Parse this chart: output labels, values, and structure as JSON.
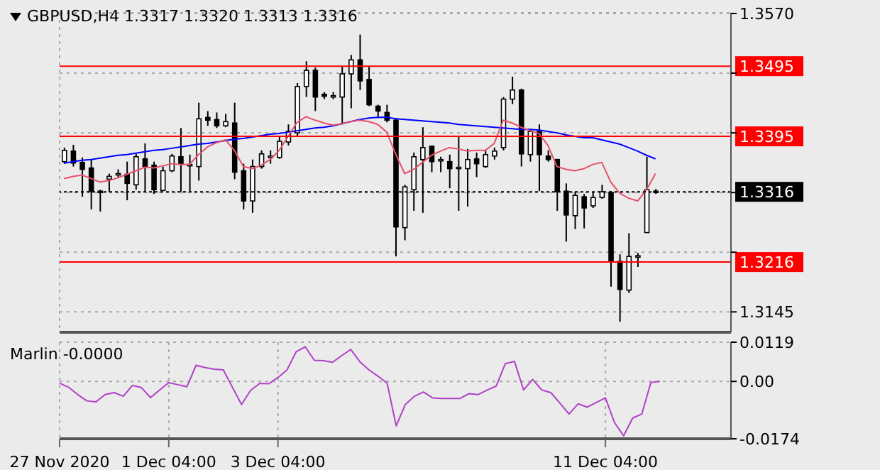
{
  "chart_data": [
    {
      "type": "candlestick",
      "title": "GBPUSD,H4 1.3317 1.3320 1.3313 1.3316",
      "categories": [
        null,
        null,
        null,
        null,
        null,
        null,
        null,
        null,
        null,
        null,
        null,
        null,
        null,
        null,
        null,
        null,
        null,
        null,
        null,
        null,
        null,
        null,
        null,
        null,
        null,
        null,
        null,
        null,
        null,
        null,
        null,
        null,
        null,
        null,
        null,
        null,
        null,
        null,
        null,
        null,
        null,
        null,
        null,
        null,
        null,
        null,
        null,
        null,
        null,
        null,
        null,
        null,
        null,
        null,
        null,
        null,
        null,
        null,
        null,
        null,
        null,
        null,
        null,
        null,
        null,
        null,
        null
      ],
      "ohlc": [
        [
          1.3359,
          1.3379,
          1.3356,
          1.3375
        ],
        [
          1.3374,
          1.3383,
          1.3352,
          1.3357
        ],
        [
          1.3358,
          1.3365,
          1.3309,
          1.3348
        ],
        [
          1.335,
          1.3362,
          1.3291,
          1.3317
        ],
        [
          1.3315,
          1.3319,
          1.3288,
          1.3317
        ],
        [
          1.3334,
          1.3342,
          1.3316,
          1.3338
        ],
        [
          1.3341,
          1.3348,
          1.3336,
          1.3342
        ],
        [
          1.3341,
          1.3359,
          1.3304,
          1.3328
        ],
        [
          1.3326,
          1.337,
          1.3319,
          1.3366
        ],
        [
          1.3363,
          1.3385,
          1.3316,
          1.3352
        ],
        [
          1.3354,
          1.3359,
          1.3313,
          1.3319
        ],
        [
          1.3318,
          1.3352,
          1.3317,
          1.3346
        ],
        [
          1.3346,
          1.337,
          1.3344,
          1.3367
        ],
        [
          1.3366,
          1.3407,
          1.3316,
          1.3356
        ],
        [
          1.3354,
          1.3369,
          1.3317,
          1.3355
        ],
        [
          1.3352,
          1.3443,
          1.3332,
          1.342
        ],
        [
          1.3422,
          1.3431,
          1.341,
          1.3418
        ],
        [
          1.3419,
          1.3429,
          1.3407,
          1.341
        ],
        [
          1.341,
          1.3427,
          1.3408,
          1.3416
        ],
        [
          1.3414,
          1.3443,
          1.3334,
          1.3344
        ],
        [
          1.3346,
          1.3356,
          1.3291,
          1.3303
        ],
        [
          1.3303,
          1.3362,
          1.3286,
          1.3352
        ],
        [
          1.3352,
          1.3375,
          1.3349,
          1.337
        ],
        [
          1.3366,
          1.3375,
          1.3356,
          1.3367
        ],
        [
          1.3365,
          1.3395,
          1.3363,
          1.3388
        ],
        [
          1.3387,
          1.3412,
          1.3382,
          1.3402
        ],
        [
          1.34,
          1.3471,
          1.3396,
          1.3466
        ],
        [
          1.3466,
          1.3502,
          1.3451,
          1.3489
        ],
        [
          1.3489,
          1.3493,
          1.3431,
          1.3451
        ],
        [
          1.3455,
          1.3458,
          1.3448,
          1.3452
        ],
        [
          1.3451,
          1.3458,
          1.3448,
          1.3453
        ],
        [
          1.3451,
          1.3495,
          1.3412,
          1.3484
        ],
        [
          1.3484,
          1.3511,
          1.3435,
          1.3504
        ],
        [
          1.3504,
          1.354,
          1.3461,
          1.3474
        ],
        [
          1.3476,
          1.3494,
          1.3438,
          1.344
        ],
        [
          1.3438,
          1.344,
          1.3421,
          1.3431
        ],
        [
          1.3429,
          1.344,
          1.3415,
          1.3418
        ],
        [
          1.3418,
          1.3421,
          1.3224,
          1.3266
        ],
        [
          1.3265,
          1.3326,
          1.3247,
          1.3323
        ],
        [
          1.3319,
          1.3372,
          1.3289,
          1.3366
        ],
        [
          1.3362,
          1.3408,
          1.3286,
          1.3379
        ],
        [
          1.3381,
          1.3382,
          1.3344,
          1.3359
        ],
        [
          1.3361,
          1.3366,
          1.3344,
          1.3362
        ],
        [
          1.3359,
          1.3369,
          1.3321,
          1.3349
        ],
        [
          1.335,
          1.3394,
          1.3289,
          1.3351
        ],
        [
          1.3349,
          1.3377,
          1.3295,
          1.3362
        ],
        [
          1.3363,
          1.3372,
          1.3337,
          1.3356
        ],
        [
          1.3352,
          1.3375,
          1.335,
          1.3369
        ],
        [
          1.3367,
          1.3379,
          1.3362,
          1.3374
        ],
        [
          1.3379,
          1.3451,
          1.3375,
          1.3448
        ],
        [
          1.3448,
          1.348,
          1.3441,
          1.3461
        ],
        [
          1.3461,
          1.3463,
          1.3352,
          1.337
        ],
        [
          1.3369,
          1.3405,
          1.3359,
          1.3402
        ],
        [
          1.3402,
          1.3412,
          1.3317,
          1.3369
        ],
        [
          1.3367,
          1.3375,
          1.3359,
          1.3362
        ],
        [
          1.3362,
          1.3363,
          1.3289,
          1.3316
        ],
        [
          1.3317,
          1.3328,
          1.3245,
          1.3283
        ],
        [
          1.3282,
          1.3316,
          1.3263,
          1.3311
        ],
        [
          1.3309,
          1.3313,
          1.3264,
          1.3293
        ],
        [
          1.3296,
          1.3316,
          1.3293,
          1.3308
        ],
        [
          1.3308,
          1.3326,
          1.3306,
          1.3316
        ],
        [
          1.3315,
          1.3317,
          1.3181,
          1.3218
        ],
        [
          1.3217,
          1.3227,
          1.3131,
          1.3177
        ],
        [
          1.3176,
          1.3257,
          1.3172,
          1.3224
        ],
        [
          1.3224,
          1.3229,
          1.3209,
          1.3225
        ],
        [
          1.3258,
          1.3366,
          1.3258,
          1.3319
        ],
        [
          1.3317,
          1.332,
          1.3313,
          1.3316
        ]
      ],
      "series": [
        {
          "type": "line",
          "color": "#0000ff",
          "values": [
            1.3357,
            1.3359,
            1.3361,
            1.3362,
            1.3364,
            1.3366,
            1.3368,
            1.3369,
            1.3371,
            1.3373,
            1.3375,
            1.3376,
            1.3378,
            1.338,
            1.3382,
            1.3384,
            1.3385,
            1.3387,
            1.3389,
            1.3391,
            1.3392,
            1.3394,
            1.3396,
            1.3398,
            1.3399,
            1.3401,
            1.3403,
            1.3405,
            1.3407,
            1.3408,
            1.341,
            1.3413,
            1.3416,
            1.3419,
            1.3421,
            1.3422,
            1.3422,
            1.342,
            1.3419,
            1.3418,
            1.3417,
            1.3416,
            1.3415,
            1.3414,
            1.3412,
            1.3411,
            1.341,
            1.3409,
            1.3408,
            1.3407,
            1.3406,
            1.3405,
            1.3405,
            1.3404,
            1.3402,
            1.34,
            1.3397,
            1.3395,
            1.3393,
            1.3393,
            1.339,
            1.3387,
            1.3384,
            1.3379,
            1.3374,
            1.3368,
            1.3363
          ]
        },
        {
          "type": "line",
          "color": "#e8506a",
          "values": [
            1.3335,
            1.3338,
            1.334,
            1.3335,
            1.333,
            1.3332,
            1.3336,
            1.3341,
            1.3346,
            1.3351,
            1.335,
            1.3353,
            1.3356,
            1.3355,
            1.3355,
            1.3369,
            1.338,
            1.3386,
            1.339,
            1.3375,
            1.3352,
            1.3349,
            1.3354,
            1.3362,
            1.3375,
            1.3395,
            1.3415,
            1.3423,
            1.3418,
            1.3414,
            1.3411,
            1.3413,
            1.3416,
            1.3418,
            1.3416,
            1.3412,
            1.3401,
            1.337,
            1.3342,
            1.3348,
            1.3358,
            1.3368,
            1.3374,
            1.3379,
            1.3377,
            1.3374,
            1.3375,
            1.3375,
            1.3385,
            1.3418,
            1.3414,
            1.3408,
            1.3403,
            1.3399,
            1.3382,
            1.3352,
            1.3348,
            1.3346,
            1.3349,
            1.3355,
            1.3358,
            1.333,
            1.3314,
            1.3307,
            1.3303,
            1.3319,
            1.3342
          ]
        }
      ],
      "ylim": [
        1.3116,
        1.3571
      ],
      "yticks": [
        1.3145,
        {
          "value": 1.323,
          "label": null
        },
        {
          "value": 1.3315,
          "label": null
        },
        {
          "value": 1.34,
          "label": null
        },
        {
          "value": 1.3485,
          "label": null
        },
        {
          "value": 1.357,
          "label": "1.3570"
        }
      ],
      "ref_lines": [
        {
          "axis": "y",
          "value": 1.3495,
          "label": "1.3495",
          "color": "#ff0000"
        },
        {
          "axis": "y",
          "value": 1.3395,
          "label": "1.3395",
          "color": "#ff0000"
        },
        {
          "axis": "y",
          "value": 1.3216,
          "label": "1.3216",
          "color": "#ff0000"
        },
        {
          "axis": "y",
          "value": 1.3316,
          "label": "1.3316",
          "color": "#000000",
          "line_style": "dotted"
        }
      ],
      "grid": true,
      "tick_labels": "y"
    },
    {
      "type": "line",
      "title": "Marlin -0.0000",
      "categories": [
        "27 Nov 2020",
        null,
        null,
        null,
        null,
        null,
        null,
        null,
        null,
        null,
        null,
        null,
        "1 Dec 04:00",
        null,
        null,
        null,
        null,
        null,
        null,
        null,
        null,
        null,
        null,
        null,
        "3 Dec 04:00",
        null,
        null,
        null,
        null,
        null,
        null,
        null,
        null,
        null,
        null,
        null,
        null,
        null,
        null,
        null,
        null,
        null,
        null,
        null,
        null,
        null,
        null,
        null,
        null,
        null,
        null,
        null,
        null,
        null,
        null,
        null,
        null,
        null,
        null,
        null,
        "11 Dec 04:00",
        null,
        null,
        null,
        null,
        null,
        null
      ],
      "series": [
        {
          "color": "#b040c8",
          "values": [
            -0.0005,
            -0.0018,
            -0.004,
            -0.0059,
            -0.0062,
            -0.004,
            -0.0034,
            -0.0045,
            -0.0012,
            -0.0019,
            -0.0049,
            -0.0026,
            -0.0004,
            -0.001,
            -0.0016,
            0.0049,
            0.0042,
            0.0037,
            0.0035,
            -0.0018,
            -0.007,
            -0.0027,
            -0.0006,
            -0.0007,
            0.0012,
            0.0035,
            0.009,
            0.0105,
            0.0064,
            0.0063,
            0.0058,
            0.0078,
            0.0097,
            0.006,
            0.0035,
            0.0016,
            -0.0005,
            -0.0135,
            -0.007,
            -0.0045,
            -0.0032,
            -0.005,
            -0.0052,
            -0.0052,
            -0.0052,
            -0.0037,
            -0.004,
            -0.0026,
            -0.0014,
            0.0054,
            0.0061,
            -0.0026,
            0.0006,
            -0.0026,
            -0.0034,
            -0.0066,
            -0.0099,
            -0.0068,
            -0.0078,
            -0.0064,
            -0.005,
            -0.0125,
            -0.0165,
            -0.0111,
            -0.0099,
            -0.0003,
            0.0
          ]
        }
      ],
      "ylim": [
        -0.0174,
        0.0119
      ],
      "yticks": [
        -0.0174,
        {
          "value": 0,
          "label": "0.00"
        },
        0.0119
      ],
      "grid": true
    }
  ]
}
